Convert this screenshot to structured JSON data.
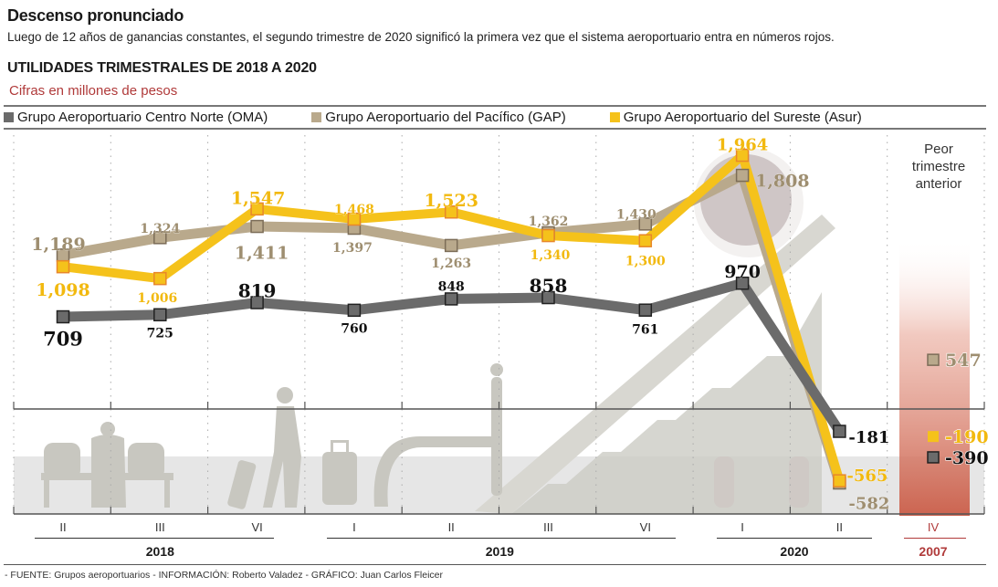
{
  "header": {
    "headline": "Descenso pronunciado",
    "dek": "Luego de 12 años de ganancias constantes, el segundo trimestre de 2020 significó la primera vez que el sistema aeroportuario entra en números rojos.",
    "chart_title": "UTILIDADES TRIMESTRALES DE 2018 A 2020",
    "units": "Cifras en millones de pesos"
  },
  "legend": [
    {
      "label": "Grupo Aeroportuario Centro Norte (OMA)",
      "color": "#6b6b6b"
    },
    {
      "label": "Grupo Aeroportuario del Pacífico (GAP)",
      "color": "#b9a98c"
    },
    {
      "label": "Grupo Aeroportuario del Sureste (Asur)",
      "color": "#f5c21b"
    }
  ],
  "annotation": {
    "worst_previous": "Peor trimestre anterior"
  },
  "axis": {
    "quarters": [
      "II",
      "III",
      "VI",
      "I",
      "II",
      "III",
      "VI",
      "I",
      "II",
      "IV"
    ],
    "years": [
      {
        "label": "2018"
      },
      {
        "label": "2019"
      },
      {
        "label": "2020"
      },
      {
        "label": "2007"
      }
    ]
  },
  "footer": "- FUENTE: Grupos aeroportuarios - INFORMACIÓN: Roberto Valadez - GRÁFICO: Juan Carlos Fleicer",
  "colors": {
    "accent_red": "#b03a3a",
    "oma": "#6b6b6b",
    "gap": "#b9a98c",
    "asur": "#f5c21b",
    "highlight": "#d9735f"
  },
  "chart_data": {
    "type": "line",
    "title": "UTILIDADES TRIMESTRALES DE 2018 A 2020",
    "subtitle": "Cifras en millones de pesos",
    "xlabel": "",
    "ylabel": "",
    "categories": [
      "II 2018",
      "III 2018",
      "VI 2018",
      "I 2019",
      "II 2019",
      "III 2019",
      "VI 2019",
      "I 2020",
      "II 2020"
    ],
    "series": [
      {
        "name": "Grupo Aeroportuario Centro Norte (OMA)",
        "key": "oma",
        "values": [
          709,
          725,
          819,
          760,
          848,
          858,
          761,
          970,
          -181
        ]
      },
      {
        "name": "Grupo Aeroportuario del Pacífico (GAP)",
        "key": "gap",
        "values": [
          1189,
          1324,
          1411,
          1397,
          1263,
          1362,
          1430,
          1808,
          -582
        ]
      },
      {
        "name": "Grupo Aeroportuario del Sureste (Asur)",
        "key": "asur",
        "values": [
          1098,
          1006,
          1547,
          1468,
          1523,
          1340,
          1300,
          1964,
          -565
        ]
      }
    ],
    "worst_previous_quarter": {
      "category": "IV 2007",
      "label": "Peor trimestre anterior",
      "values": {
        "gap": 547,
        "asur": -190,
        "oma": -390
      }
    },
    "legend_position": "top",
    "grid": "vertical dotted",
    "ylim": [
      -650,
      2050
    ]
  }
}
